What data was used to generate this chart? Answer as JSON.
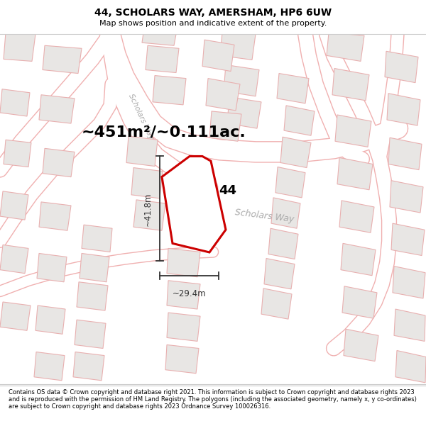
{
  "title_line1": "44, SCHOLARS WAY, AMERSHAM, HP6 6UW",
  "title_line2": "Map shows position and indicative extent of the property.",
  "area_text": "~451m²/~0.111ac.",
  "label_number": "44",
  "dim_height": "~41.8m",
  "dim_width": "~29.4m",
  "road_label_h": "Scholars Way",
  "road_label_v": "Scholars Way",
  "footer_text": "Contains OS data © Crown copyright and database right 2021. This information is subject to Crown copyright and database rights 2023 and is reproduced with the permission of HM Land Registry. The polygons (including the associated geometry, namely x, y co-ordinates) are subject to Crown copyright and database rights 2023 Ordnance Survey 100026316.",
  "map_bg": "#ffffff",
  "building_fill": "#e8e6e4",
  "building_edge": "#e8b0b0",
  "road_fill": "#ffffff",
  "road_edge": "#f0b0b0",
  "property_fill": "#ffffff",
  "property_edge": "#cc0000",
  "dim_color": "#333333",
  "text_color": "#000000",
  "road_text_color": "#aaaaaa",
  "area_fontsize": 16,
  "title_fontsize": 10,
  "subtitle_fontsize": 8,
  "footer_fontsize": 6.0
}
